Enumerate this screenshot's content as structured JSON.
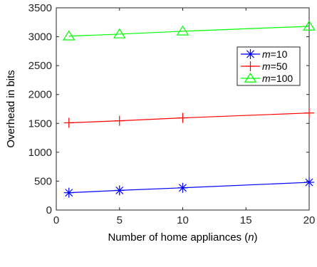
{
  "chart_data": {
    "type": "line",
    "x": [
      1,
      5,
      10,
      20
    ],
    "series": [
      {
        "name_italic": "m",
        "name_rest": "=10",
        "values": [
          300,
          340,
          385,
          480
        ],
        "color": "#0000ff",
        "marker": "asterisk"
      },
      {
        "name_italic": "m",
        "name_rest": "=50",
        "values": [
          1510,
          1545,
          1595,
          1680
        ],
        "color": "#ff0000",
        "marker": "plus"
      },
      {
        "name_italic": "m",
        "name_rest": "=100",
        "values": [
          3010,
          3045,
          3095,
          3180
        ],
        "color": "#00ff00",
        "marker": "triangle"
      }
    ],
    "xlabel_main": "Number of home appliances (",
    "xlabel_var": "n",
    "xlabel_close": ")",
    "ylabel": "Overhead in bits",
    "xlim": [
      0,
      20
    ],
    "ylim": [
      0,
      3500
    ],
    "xticks": [
      0,
      5,
      10,
      15,
      20
    ],
    "yticks": [
      0,
      500,
      1000,
      1500,
      2000,
      2500,
      3000,
      3500
    ],
    "grid": false,
    "legend_position": "right"
  }
}
